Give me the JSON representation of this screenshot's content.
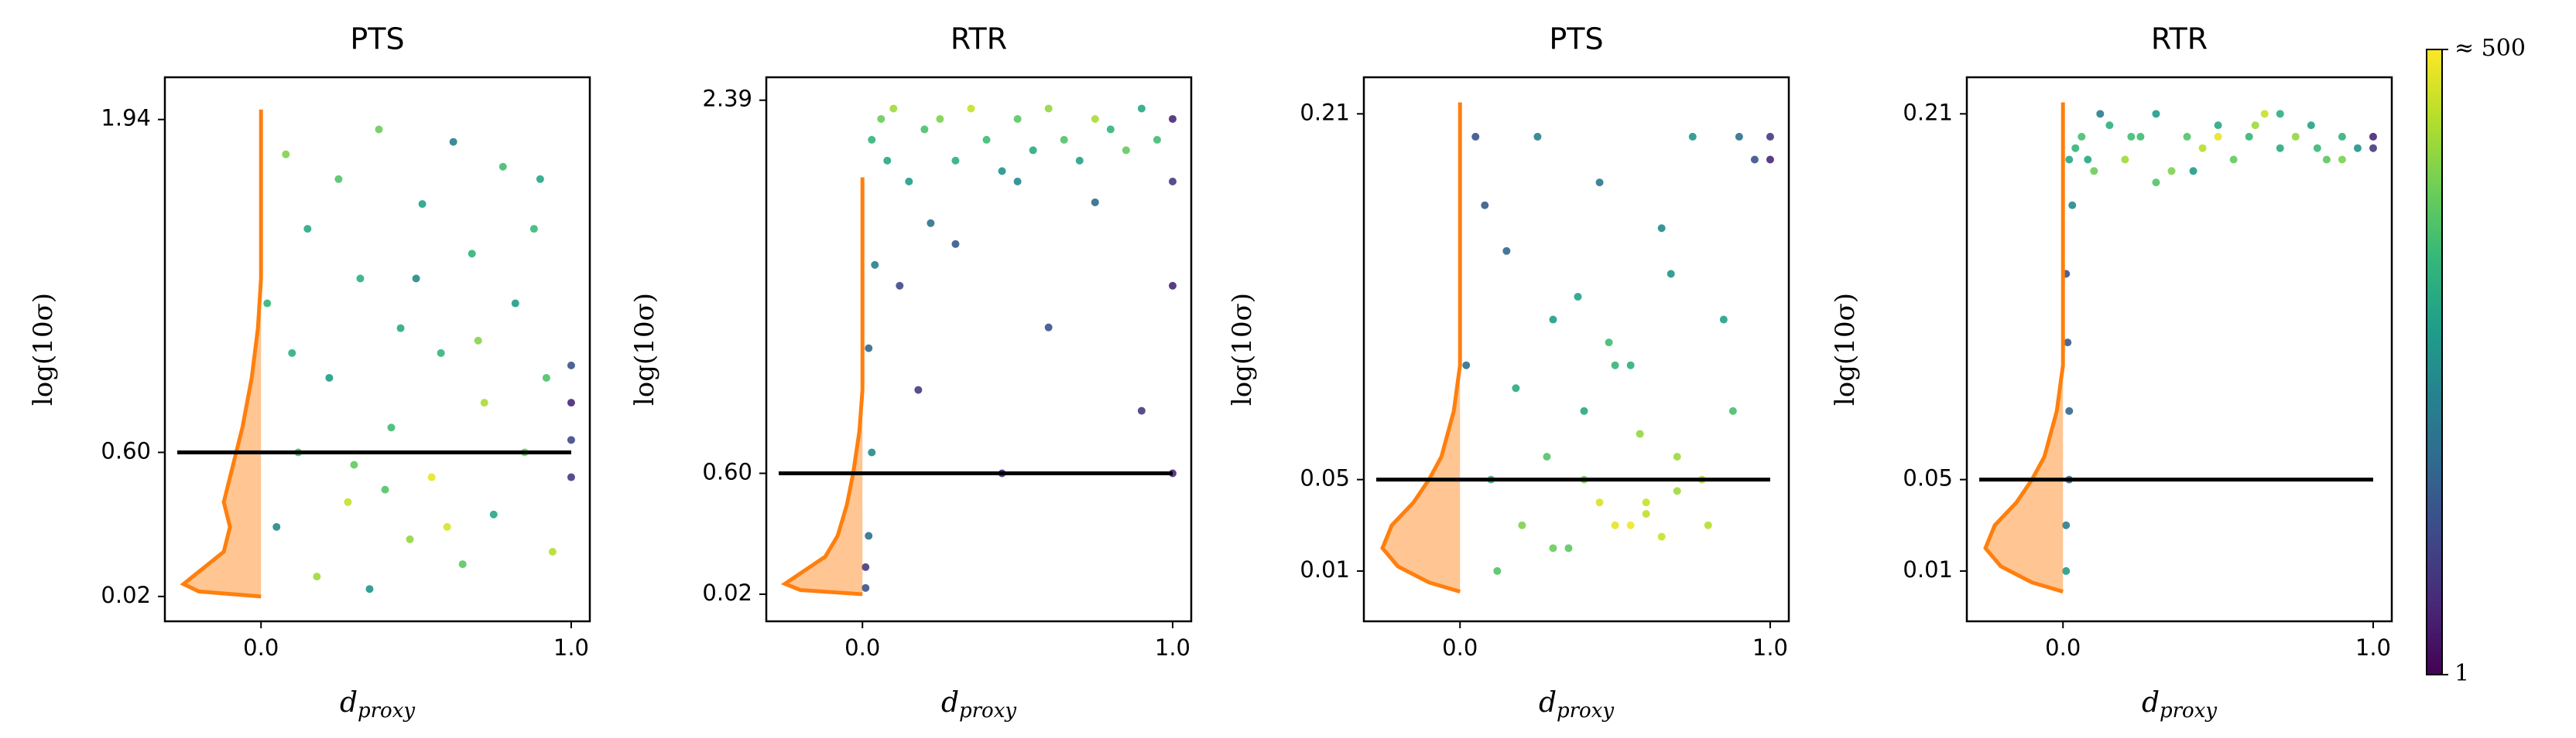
{
  "chart_data": [
    {
      "type": "scatter",
      "title": "PTS",
      "ylabel": "log(10σ)",
      "xlabel": "d",
      "xlabel_sub": "proxy",
      "xlim": [
        -0.31,
        1.06
      ],
      "xticks": [
        {
          "value": 0,
          "label": "0.0"
        },
        {
          "value": 1,
          "label": "1.0"
        }
      ],
      "ylim": [
        -0.08,
        2.11
      ],
      "yticks": [
        0.02,
        {
          "value": 0.6,
          "label": "0.60"
        },
        1.94
      ],
      "x": [
        0.02,
        0.05,
        0.08,
        0.12,
        0.15,
        0.18,
        0.22,
        0.25,
        0.28,
        0.32,
        0.35,
        0.38,
        0.42,
        0.45,
        0.48,
        0.52,
        0.55,
        0.58,
        0.62,
        0.65,
        0.68,
        0.72,
        0.75,
        0.78,
        0.82,
        0.85,
        0.88,
        0.92,
        0.94,
        0.1,
        0.3,
        0.5,
        0.7,
        0.9,
        0.4,
        0.6,
        1.0,
        1.0,
        1.0,
        1.0
      ],
      "y": [
        1.2,
        0.3,
        1.8,
        0.6,
        1.5,
        0.1,
        0.9,
        1.7,
        0.4,
        1.3,
        0.05,
        1.9,
        0.7,
        1.1,
        0.25,
        1.6,
        0.5,
        1.0,
        1.85,
        0.15,
        1.4,
        0.8,
        0.35,
        1.75,
        1.2,
        0.6,
        1.5,
        0.9,
        0.2,
        1.0,
        0.55,
        1.3,
        1.05,
        1.7,
        0.45,
        0.3,
        0.5,
        0.65,
        0.8,
        0.95
      ],
      "count": [
        60,
        20,
        150,
        80,
        40,
        200,
        30,
        90,
        300,
        50,
        25,
        120,
        70,
        45,
        180,
        35,
        400,
        60,
        15,
        100,
        55,
        220,
        40,
        75,
        30,
        130,
        65,
        85,
        250,
        50,
        110,
        20,
        160,
        40,
        90,
        350,
        3,
        4,
        2,
        5
      ],
      "kde": {
        "color": "#ff7f0e",
        "y": [
          0.02,
          0.04,
          0.07,
          0.12,
          0.2,
          0.3,
          0.4,
          0.5,
          0.7,
          0.9,
          1.1,
          1.3,
          1.98
        ],
        "x": [
          0,
          -0.2,
          -0.25,
          -0.2,
          -0.12,
          -0.1,
          -0.12,
          -0.1,
          -0.06,
          -0.03,
          -0.01,
          0,
          0
        ]
      },
      "hline": {
        "y": 0.6,
        "x": [
          -0.27,
          1.0
        ],
        "color": "#000000"
      }
    },
    {
      "type": "scatter",
      "title": "RTR",
      "ylabel": "log(10σ)",
      "xlabel": "d",
      "xlabel_sub": "proxy",
      "xlim": [
        -0.31,
        1.06
      ],
      "xticks": [
        {
          "value": 0,
          "label": "0.0"
        },
        {
          "value": 1,
          "label": "1.0"
        }
      ],
      "ylim": [
        -0.11,
        2.5
      ],
      "yticks": [
        0.02,
        {
          "value": 0.6,
          "label": "0.60"
        },
        2.39
      ],
      "x": [
        0.01,
        0.02,
        0.03,
        0.02,
        0.04,
        0.01,
        0.03,
        0.06,
        0.08,
        0.1,
        0.15,
        0.2,
        0.25,
        0.3,
        0.35,
        0.4,
        0.45,
        0.5,
        0.55,
        0.6,
        0.65,
        0.7,
        0.75,
        0.8,
        0.85,
        0.9,
        0.95,
        0.12,
        0.18,
        0.3,
        0.45,
        0.6,
        0.75,
        0.9,
        0.22,
        0.5,
        1.0,
        1.0,
        1.0,
        1.0
      ],
      "y": [
        0.05,
        0.3,
        0.7,
        1.2,
        1.6,
        0.15,
        2.2,
        2.3,
        2.1,
        2.35,
        2.0,
        2.25,
        2.3,
        2.1,
        2.35,
        2.2,
        2.05,
        2.3,
        2.15,
        2.35,
        2.2,
        2.1,
        2.3,
        2.25,
        2.15,
        2.35,
        2.2,
        1.5,
        1.0,
        1.7,
        0.6,
        1.3,
        1.9,
        0.9,
        1.8,
        2.0,
        2.3,
        2.0,
        1.5,
        0.6
      ],
      "count": [
        5,
        10,
        20,
        8,
        15,
        3,
        60,
        120,
        40,
        200,
        30,
        80,
        150,
        50,
        300,
        70,
        25,
        100,
        45,
        180,
        90,
        35,
        220,
        60,
        110,
        40,
        75,
        4,
        3,
        6,
        2,
        5,
        8,
        3,
        10,
        20,
        2,
        3,
        2,
        2
      ],
      "kde": {
        "color": "#ff7f0e",
        "y": [
          0.02,
          0.04,
          0.07,
          0.12,
          0.2,
          0.3,
          0.45,
          0.6,
          0.8,
          1.0,
          2.02
        ],
        "x": [
          0,
          -0.2,
          -0.25,
          -0.2,
          -0.12,
          -0.08,
          -0.05,
          -0.03,
          -0.01,
          0,
          0
        ]
      },
      "hline": {
        "y": 0.6,
        "x": [
          -0.27,
          1.0
        ],
        "color": "#000000"
      }
    },
    {
      "type": "scatter",
      "title": "PTS",
      "ylabel": "log(10σ)",
      "xlabel": "d",
      "xlabel_sub": "proxy",
      "xlim": [
        -0.31,
        1.06
      ],
      "xticks": [
        {
          "value": 0,
          "label": "0.0"
        },
        {
          "value": 1,
          "label": "1.0"
        }
      ],
      "ylim": [
        -0.012,
        0.226
      ],
      "yticks": [
        0.01,
        0.05,
        0.21
      ],
      "x": [
        0.02,
        0.05,
        0.1,
        0.15,
        0.2,
        0.25,
        0.3,
        0.35,
        0.4,
        0.45,
        0.5,
        0.55,
        0.6,
        0.65,
        0.7,
        0.75,
        0.8,
        0.85,
        0.9,
        0.95,
        0.08,
        0.18,
        0.28,
        0.38,
        0.48,
        0.58,
        0.68,
        0.78,
        0.88,
        0.3,
        0.45,
        0.55,
        0.65,
        0.4,
        0.5,
        0.6,
        0.7,
        1.0,
        1.0,
        0.12
      ],
      "y": [
        0.1,
        0.2,
        0.05,
        0.15,
        0.03,
        0.2,
        0.12,
        0.02,
        0.08,
        0.18,
        0.03,
        0.1,
        0.04,
        0.16,
        0.06,
        0.2,
        0.03,
        0.12,
        0.2,
        0.19,
        0.17,
        0.09,
        0.06,
        0.13,
        0.11,
        0.07,
        0.14,
        0.05,
        0.08,
        0.02,
        0.04,
        0.03,
        0.025,
        0.05,
        0.1,
        0.035,
        0.045,
        0.19,
        0.2,
        0.01
      ],
      "count": [
        10,
        5,
        60,
        8,
        150,
        15,
        30,
        100,
        40,
        12,
        400,
        50,
        300,
        20,
        200,
        25,
        250,
        35,
        10,
        5,
        6,
        45,
        90,
        35,
        70,
        180,
        25,
        220,
        80,
        120,
        350,
        450,
        300,
        150,
        60,
        280,
        200,
        2,
        3,
        90
      ],
      "kde": {
        "color": "#ff7f0e",
        "y": [
          0.001,
          0.005,
          0.012,
          0.02,
          0.03,
          0.04,
          0.05,
          0.06,
          0.08,
          0.1,
          0.215
        ],
        "x": [
          0,
          -0.1,
          -0.2,
          -0.25,
          -0.22,
          -0.15,
          -0.1,
          -0.06,
          -0.02,
          0,
          0
        ]
      },
      "hline": {
        "y": 0.05,
        "x": [
          -0.27,
          1.0
        ],
        "color": "#000000"
      }
    },
    {
      "type": "scatter",
      "title": "RTR",
      "ylabel": "log(10σ)",
      "xlabel": "d",
      "xlabel_sub": "proxy",
      "xlim": [
        -0.31,
        1.06
      ],
      "xticks": [
        {
          "value": 0,
          "label": "0.0"
        },
        {
          "value": 1,
          "label": "1.0"
        }
      ],
      "ylim": [
        -0.012,
        0.226
      ],
      "yticks": [
        0.01,
        0.05,
        0.21
      ],
      "x": [
        0.01,
        0.01,
        0.02,
        0.02,
        0.015,
        0.01,
        0.03,
        0.02,
        0.04,
        0.06,
        0.1,
        0.15,
        0.2,
        0.25,
        0.3,
        0.35,
        0.4,
        0.45,
        0.5,
        0.55,
        0.6,
        0.65,
        0.7,
        0.75,
        0.8,
        0.85,
        0.9,
        0.95,
        0.12,
        0.3,
        0.5,
        0.7,
        0.9,
        0.22,
        0.42,
        0.62,
        0.82,
        1.0,
        1.0,
        0.08
      ],
      "y": [
        0.01,
        0.03,
        0.05,
        0.08,
        0.11,
        0.14,
        0.17,
        0.19,
        0.195,
        0.2,
        0.185,
        0.205,
        0.19,
        0.2,
        0.21,
        0.185,
        0.2,
        0.195,
        0.205,
        0.19,
        0.2,
        0.21,
        0.195,
        0.2,
        0.205,
        0.19,
        0.2,
        0.195,
        0.21,
        0.18,
        0.2,
        0.21,
        0.19,
        0.2,
        0.185,
        0.205,
        0.195,
        0.2,
        0.195,
        0.19
      ],
      "count": [
        30,
        15,
        10,
        8,
        6,
        5,
        20,
        40,
        60,
        80,
        120,
        50,
        200,
        70,
        30,
        150,
        90,
        250,
        40,
        110,
        60,
        300,
        45,
        180,
        35,
        100,
        55,
        25,
        15,
        90,
        400,
        50,
        140,
        75,
        30,
        200,
        65,
        2,
        3,
        40
      ],
      "kde": {
        "color": "#ff7f0e",
        "y": [
          0.001,
          0.005,
          0.012,
          0.02,
          0.03,
          0.04,
          0.05,
          0.06,
          0.08,
          0.1,
          0.215
        ],
        "x": [
          0,
          -0.1,
          -0.2,
          -0.25,
          -0.22,
          -0.15,
          -0.1,
          -0.06,
          -0.02,
          0,
          0
        ]
      },
      "hline": {
        "y": 0.05,
        "x": [
          -0.27,
          1.0
        ],
        "color": "#000000"
      }
    }
  ],
  "colorbar": {
    "colormap": "viridis",
    "log": true,
    "lim": [
      1,
      500
    ],
    "ticks": [
      1,
      {
        "value": 500,
        "label": "≈ 500"
      }
    ]
  }
}
